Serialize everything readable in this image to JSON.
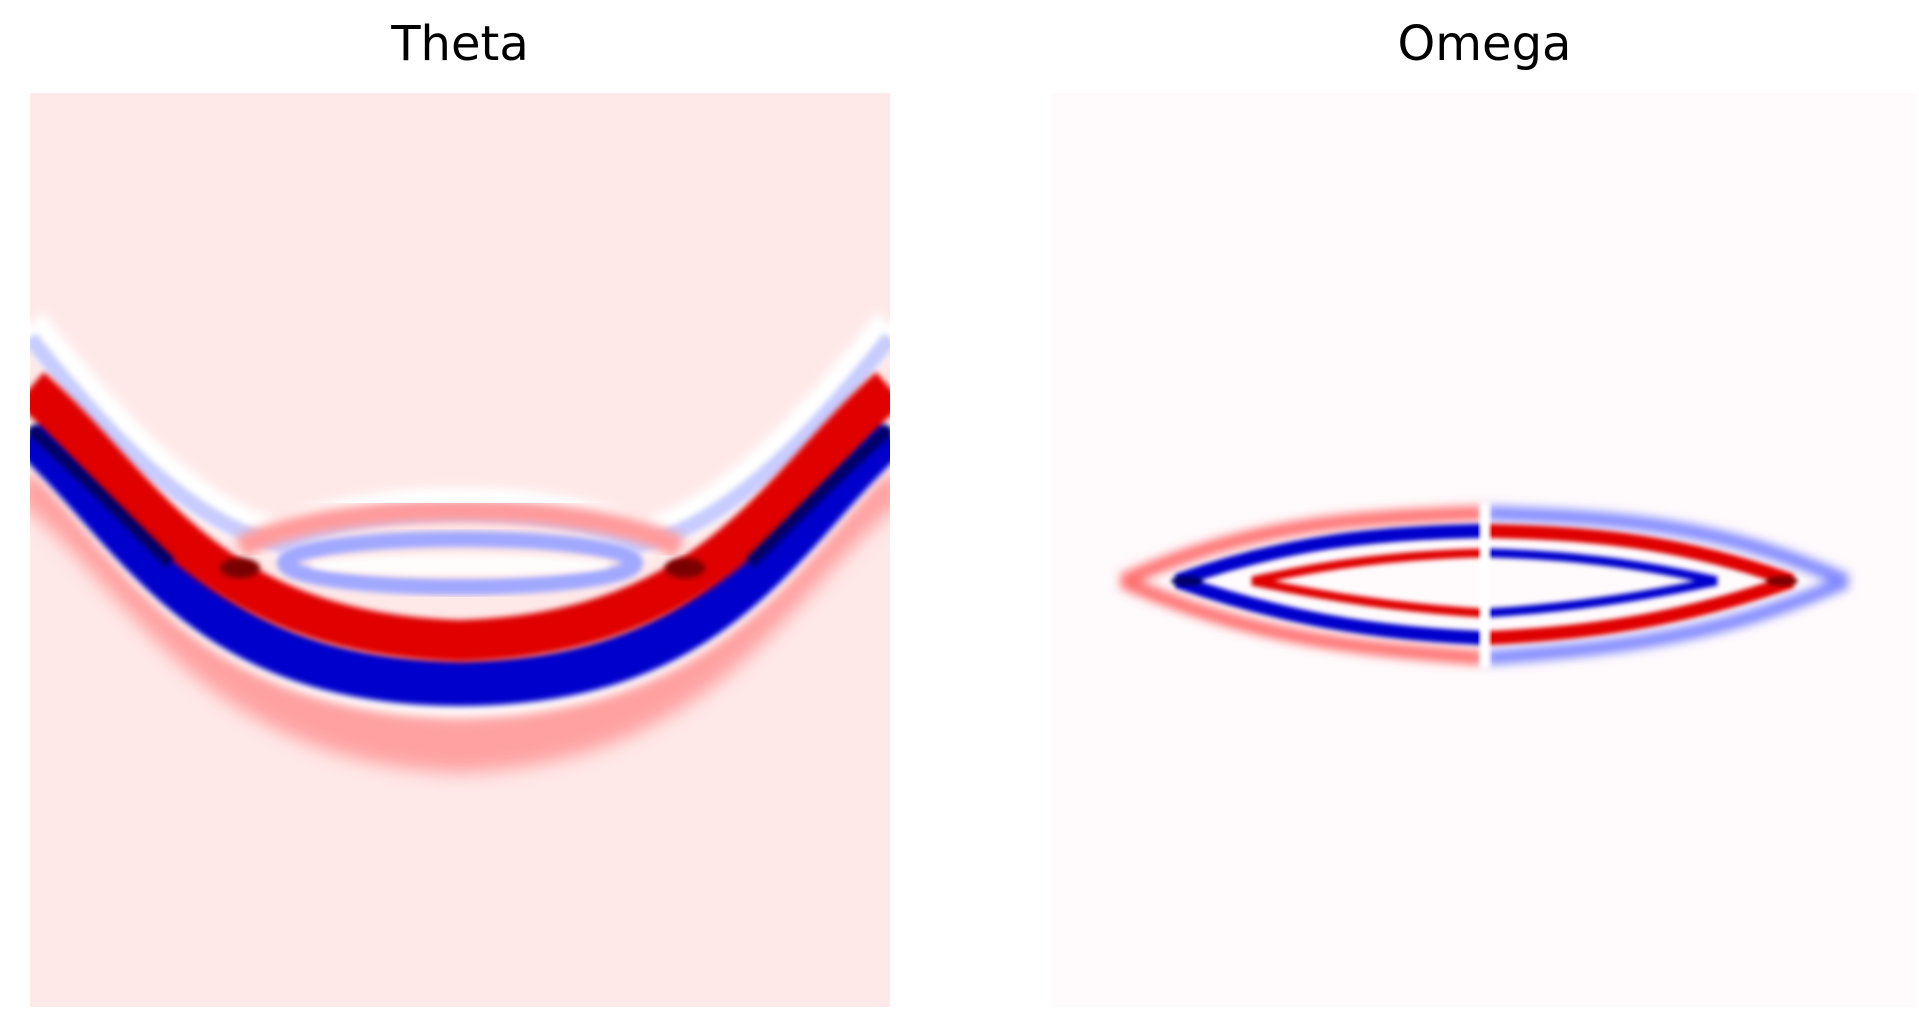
{
  "figure": {
    "panels": [
      {
        "title": "Theta"
      },
      {
        "title": "Omega"
      }
    ]
  },
  "colors": {
    "positive_dark": "#7a0000",
    "positive": "#e00000",
    "positive_light": "#ff8a8a",
    "background_theta": "#ffe8e8",
    "background_omega": "#fffafc",
    "negative": "#0000cc",
    "negative_dark": "#000055",
    "negative_light": "#c8ccff",
    "neutral": "#ffffff"
  },
  "colormap": "seismic"
}
